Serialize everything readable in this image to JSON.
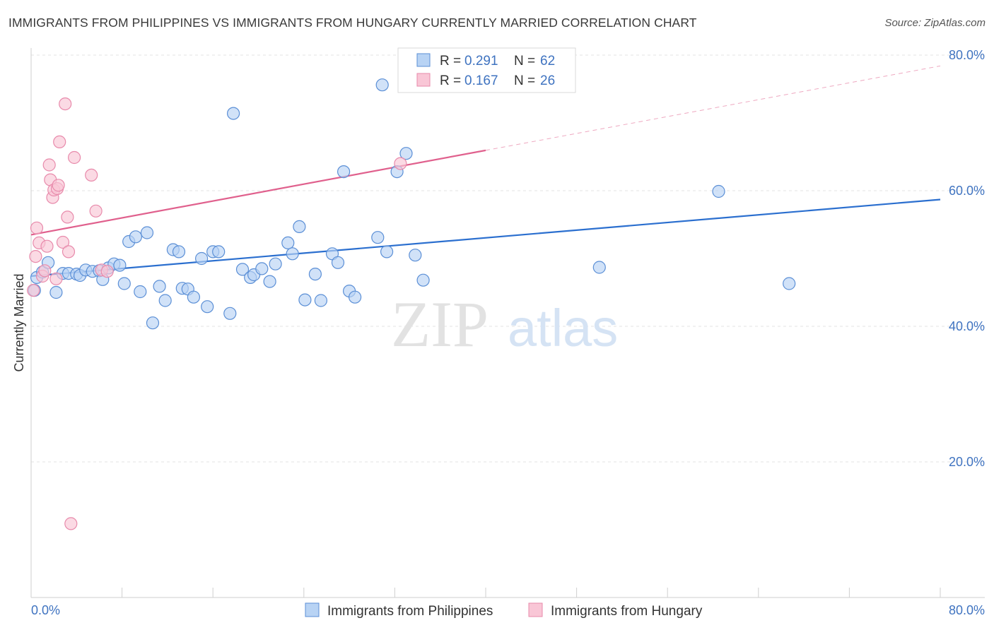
{
  "title": "IMMIGRANTS FROM PHILIPPINES VS IMMIGRANTS FROM HUNGARY CURRENTLY MARRIED CORRELATION CHART",
  "source": "Source: ZipAtlas.com",
  "watermark": {
    "zip": "ZIP",
    "atlas": "atlas"
  },
  "colors": {
    "blue_fill": "#b8d3f4",
    "blue_stroke": "#5b8fd6",
    "blue_line": "#2b6fcf",
    "pink_fill": "#f9c6d6",
    "pink_stroke": "#e88aab",
    "pink_line": "#e0608d",
    "tick_label": "#3f73c0",
    "grid": "#e3e3e3"
  },
  "legend": {
    "rows": [
      {
        "r_label": "R = ",
        "r_value": "0.291",
        "n_label": "N = ",
        "n_value": "62"
      },
      {
        "r_label": "R = ",
        "r_value": "0.167",
        "n_label": "N = ",
        "n_value": "26"
      }
    ]
  },
  "chart_data": {
    "type": "scatter",
    "title": "IMMIGRANTS FROM PHILIPPINES VS IMMIGRANTS FROM HUNGARY CURRENTLY MARRIED CORRELATION CHART",
    "xlabel": "",
    "ylabel": "Currently Married",
    "xlim": [
      0,
      80
    ],
    "ylim": [
      0,
      82
    ],
    "x_tick_labels": [
      "0.0%",
      "80.0%"
    ],
    "y_ticks": [
      20,
      40,
      60,
      80
    ],
    "y_tick_labels": [
      "20.0%",
      "40.0%",
      "60.0%",
      "80.0%"
    ],
    "grid": true,
    "legend_position": "top-center",
    "series": [
      {
        "name": "Immigrants from Philippines",
        "color": "#5b8fd6",
        "r": 0.291,
        "n": 62,
        "trend": {
          "x": [
            0,
            80
          ],
          "y": [
            47.4,
            58.7
          ],
          "dashed_from": null
        },
        "points": [
          [
            0.5,
            47.2
          ],
          [
            1.0,
            48.0
          ],
          [
            1.5,
            49.4
          ],
          [
            2.2,
            45.0
          ],
          [
            2.8,
            47.8
          ],
          [
            3.3,
            47.8
          ],
          [
            4.0,
            47.7
          ],
          [
            4.3,
            47.5
          ],
          [
            4.8,
            48.3
          ],
          [
            5.4,
            48.1
          ],
          [
            6.0,
            48.2
          ],
          [
            6.3,
            46.9
          ],
          [
            6.8,
            48.6
          ],
          [
            7.3,
            49.2
          ],
          [
            7.8,
            49.0
          ],
          [
            8.2,
            46.3
          ],
          [
            8.6,
            52.5
          ],
          [
            9.2,
            53.2
          ],
          [
            9.6,
            45.1
          ],
          [
            10.2,
            53.8
          ],
          [
            10.7,
            40.5
          ],
          [
            11.3,
            45.9
          ],
          [
            11.8,
            43.8
          ],
          [
            12.5,
            51.3
          ],
          [
            13.0,
            51.0
          ],
          [
            13.3,
            45.6
          ],
          [
            13.8,
            45.5
          ],
          [
            14.3,
            44.3
          ],
          [
            15.0,
            50.0
          ],
          [
            15.5,
            42.9
          ],
          [
            16.0,
            51.0
          ],
          [
            16.5,
            51.0
          ],
          [
            17.5,
            41.9
          ],
          [
            17.8,
            71.4
          ],
          [
            18.6,
            48.4
          ],
          [
            19.3,
            47.2
          ],
          [
            19.6,
            47.6
          ],
          [
            20.3,
            48.5
          ],
          [
            21.0,
            46.6
          ],
          [
            21.5,
            49.2
          ],
          [
            22.6,
            52.3
          ],
          [
            23.0,
            50.7
          ],
          [
            23.6,
            54.7
          ],
          [
            24.1,
            43.9
          ],
          [
            25.0,
            47.7
          ],
          [
            25.5,
            43.8
          ],
          [
            26.5,
            50.7
          ],
          [
            27.0,
            49.4
          ],
          [
            27.5,
            62.8
          ],
          [
            28.0,
            45.2
          ],
          [
            28.5,
            44.3
          ],
          [
            30.5,
            53.1
          ],
          [
            30.9,
            75.6
          ],
          [
            31.3,
            51.0
          ],
          [
            32.2,
            62.8
          ],
          [
            33.0,
            65.5
          ],
          [
            33.8,
            50.5
          ],
          [
            34.5,
            46.8
          ],
          [
            50.0,
            48.7
          ],
          [
            60.5,
            59.9
          ],
          [
            66.7,
            46.3
          ],
          [
            0.3,
            45.3
          ]
        ]
      },
      {
        "name": "Immigrants from Hungary",
        "color": "#e88aab",
        "r": 0.167,
        "n": 26,
        "trend": {
          "x": [
            0,
            80
          ],
          "y": [
            53.5,
            78.4
          ],
          "dashed_from": 40
        },
        "points": [
          [
            0.2,
            45.3
          ],
          [
            0.4,
            50.3
          ],
          [
            0.5,
            54.5
          ],
          [
            0.7,
            52.3
          ],
          [
            1.0,
            47.4
          ],
          [
            1.2,
            48.2
          ],
          [
            1.4,
            51.8
          ],
          [
            1.6,
            63.8
          ],
          [
            1.7,
            61.6
          ],
          [
            1.9,
            59.0
          ],
          [
            2.0,
            60.1
          ],
          [
            2.2,
            47.0
          ],
          [
            2.3,
            60.3
          ],
          [
            2.4,
            60.8
          ],
          [
            2.5,
            67.2
          ],
          [
            2.8,
            52.4
          ],
          [
            3.0,
            72.8
          ],
          [
            3.2,
            56.1
          ],
          [
            3.3,
            51.0
          ],
          [
            3.5,
            10.9
          ],
          [
            3.8,
            64.9
          ],
          [
            5.3,
            62.3
          ],
          [
            5.7,
            57.0
          ],
          [
            6.2,
            48.3
          ],
          [
            6.7,
            48.1
          ],
          [
            32.5,
            64.0
          ]
        ]
      }
    ]
  }
}
